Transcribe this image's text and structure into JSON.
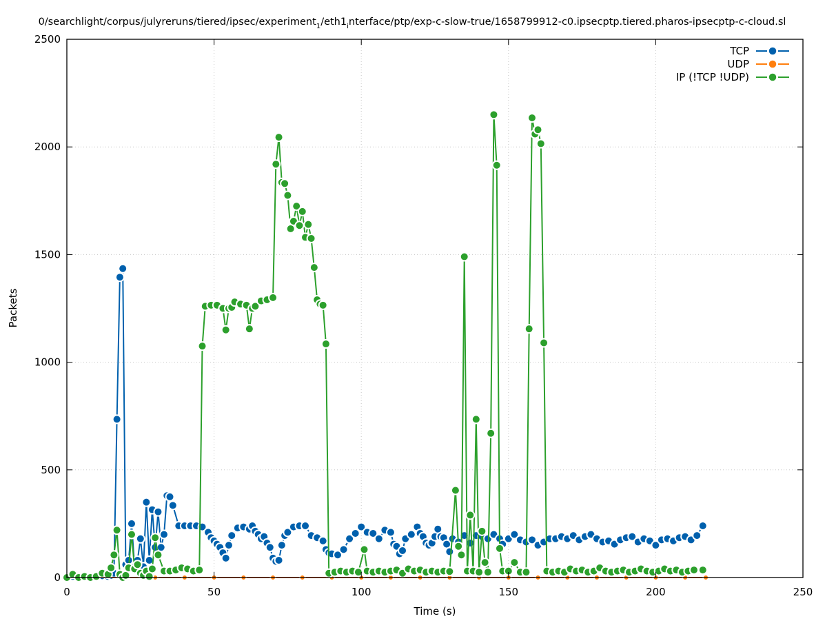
{
  "chart_data": {
    "type": "line",
    "title": {
      "main": "0/searchlight/corpus/julyreruns/tiered/ipsec/experiment",
      "sub1": "1",
      "mid": "/eth1",
      "sub2": "i",
      "rest": "nterface/ptp/exp-c-slow-true/1658799912-c0.ipsecptp.tiered.pharos-ipsecptp-c-cloud.sl"
    },
    "xlabel": "Time (s)",
    "ylabel": "Packets",
    "xlim": [
      0,
      250
    ],
    "ylim": [
      0,
      2500
    ],
    "xticks": [
      0,
      50,
      100,
      150,
      200,
      250
    ],
    "yticks": [
      0,
      500,
      1000,
      1500,
      2000,
      2500
    ],
    "grid": true,
    "legend_position": "top-right",
    "series": [
      {
        "name": "TCP",
        "color": "#0060ad",
        "points": [
          [
            0,
            0
          ],
          [
            2,
            5
          ],
          [
            4,
            0
          ],
          [
            6,
            0
          ],
          [
            8,
            0
          ],
          [
            10,
            3
          ],
          [
            12,
            8
          ],
          [
            14,
            5
          ],
          [
            15,
            10
          ],
          [
            16,
            20
          ],
          [
            17,
            735
          ],
          [
            18,
            1395
          ],
          [
            19,
            1435
          ],
          [
            20,
            60
          ],
          [
            21,
            80
          ],
          [
            22,
            250
          ],
          [
            23,
            50
          ],
          [
            24,
            80
          ],
          [
            25,
            180
          ],
          [
            26,
            50
          ],
          [
            27,
            350
          ],
          [
            28,
            80
          ],
          [
            29,
            315
          ],
          [
            30,
            140
          ],
          [
            31,
            305
          ],
          [
            32,
            140
          ],
          [
            33,
            200
          ],
          [
            34,
            380
          ],
          [
            35,
            375
          ],
          [
            36,
            335
          ],
          [
            38,
            240
          ],
          [
            40,
            240
          ],
          [
            42,
            240
          ],
          [
            44,
            240
          ],
          [
            46,
            235
          ],
          [
            48,
            210
          ],
          [
            49,
            185
          ],
          [
            50,
            170
          ],
          [
            51,
            155
          ],
          [
            52,
            140
          ],
          [
            53,
            115
          ],
          [
            54,
            90
          ],
          [
            55,
            150
          ],
          [
            56,
            195
          ],
          [
            58,
            230
          ],
          [
            60,
            235
          ],
          [
            62,
            225
          ],
          [
            63,
            240
          ],
          [
            64,
            215
          ],
          [
            65,
            200
          ],
          [
            66,
            180
          ],
          [
            67,
            190
          ],
          [
            68,
            160
          ],
          [
            69,
            140
          ],
          [
            70,
            90
          ],
          [
            71,
            75
          ],
          [
            72,
            80
          ],
          [
            73,
            150
          ],
          [
            74,
            195
          ],
          [
            75,
            210
          ],
          [
            77,
            235
          ],
          [
            79,
            240
          ],
          [
            81,
            240
          ],
          [
            83,
            195
          ],
          [
            85,
            185
          ],
          [
            87,
            170
          ],
          [
            88,
            130
          ],
          [
            89,
            115
          ],
          [
            90,
            110
          ],
          [
            92,
            105
          ],
          [
            94,
            130
          ],
          [
            96,
            180
          ],
          [
            98,
            205
          ],
          [
            100,
            235
          ],
          [
            102,
            210
          ],
          [
            104,
            205
          ],
          [
            106,
            180
          ],
          [
            108,
            220
          ],
          [
            110,
            210
          ],
          [
            111,
            155
          ],
          [
            112,
            145
          ],
          [
            113,
            110
          ],
          [
            114,
            125
          ],
          [
            115,
            180
          ],
          [
            117,
            200
          ],
          [
            119,
            235
          ],
          [
            120,
            205
          ],
          [
            121,
            190
          ],
          [
            122,
            160
          ],
          [
            123,
            150
          ],
          [
            124,
            160
          ],
          [
            125,
            190
          ],
          [
            126,
            225
          ],
          [
            127,
            190
          ],
          [
            128,
            185
          ],
          [
            129,
            155
          ],
          [
            130,
            120
          ],
          [
            131,
            180
          ],
          [
            133,
            165
          ],
          [
            135,
            195
          ],
          [
            137,
            160
          ],
          [
            139,
            195
          ],
          [
            141,
            190
          ],
          [
            143,
            180
          ],
          [
            145,
            200
          ],
          [
            147,
            180
          ],
          [
            148,
            155
          ],
          [
            150,
            180
          ],
          [
            152,
            200
          ],
          [
            154,
            175
          ],
          [
            156,
            165
          ],
          [
            158,
            175
          ],
          [
            160,
            150
          ],
          [
            162,
            165
          ],
          [
            164,
            180
          ],
          [
            166,
            180
          ],
          [
            168,
            190
          ],
          [
            170,
            180
          ],
          [
            172,
            195
          ],
          [
            174,
            175
          ],
          [
            176,
            190
          ],
          [
            178,
            200
          ],
          [
            180,
            180
          ],
          [
            182,
            165
          ],
          [
            184,
            170
          ],
          [
            186,
            155
          ],
          [
            188,
            175
          ],
          [
            190,
            185
          ],
          [
            192,
            190
          ],
          [
            194,
            165
          ],
          [
            196,
            180
          ],
          [
            198,
            170
          ],
          [
            200,
            150
          ],
          [
            202,
            175
          ],
          [
            204,
            180
          ],
          [
            206,
            170
          ],
          [
            208,
            185
          ],
          [
            210,
            190
          ],
          [
            212,
            175
          ],
          [
            214,
            195
          ],
          [
            216,
            240
          ]
        ]
      },
      {
        "name": "UDP",
        "color": "#ff7f0e",
        "points": [
          [
            0,
            0
          ],
          [
            10,
            0
          ],
          [
            20,
            0
          ],
          [
            30,
            0
          ],
          [
            40,
            0
          ],
          [
            50,
            0
          ],
          [
            60,
            0
          ],
          [
            70,
            0
          ],
          [
            80,
            0
          ],
          [
            90,
            0
          ],
          [
            100,
            0
          ],
          [
            110,
            0
          ],
          [
            120,
            0
          ],
          [
            130,
            0
          ],
          [
            140,
            0
          ],
          [
            150,
            0
          ],
          [
            160,
            0
          ],
          [
            170,
            0
          ],
          [
            180,
            0
          ],
          [
            190,
            0
          ],
          [
            200,
            0
          ],
          [
            210,
            0
          ],
          [
            217,
            0
          ]
        ]
      },
      {
        "name": "IP (!TCP  !UDP)",
        "color": "#2ca02c",
        "points": [
          [
            0,
            0
          ],
          [
            2,
            15
          ],
          [
            4,
            0
          ],
          [
            6,
            5
          ],
          [
            8,
            0
          ],
          [
            10,
            5
          ],
          [
            12,
            20
          ],
          [
            14,
            15
          ],
          [
            15,
            45
          ],
          [
            16,
            105
          ],
          [
            17,
            220
          ],
          [
            18,
            15
          ],
          [
            19,
            0
          ],
          [
            20,
            10
          ],
          [
            21,
            45
          ],
          [
            22,
            200
          ],
          [
            23,
            40
          ],
          [
            24,
            60
          ],
          [
            25,
            20
          ],
          [
            26,
            10
          ],
          [
            27,
            30
          ],
          [
            28,
            5
          ],
          [
            29,
            40
          ],
          [
            30,
            185
          ],
          [
            31,
            105
          ],
          [
            33,
            30
          ],
          [
            35,
            30
          ],
          [
            37,
            35
          ],
          [
            39,
            45
          ],
          [
            41,
            40
          ],
          [
            43,
            30
          ],
          [
            45,
            35
          ],
          [
            46,
            1075
          ],
          [
            47,
            1260
          ],
          [
            49,
            1265
          ],
          [
            51,
            1265
          ],
          [
            53,
            1250
          ],
          [
            54,
            1150
          ],
          [
            55,
            1250
          ],
          [
            56,
            1255
          ],
          [
            57,
            1280
          ],
          [
            59,
            1270
          ],
          [
            61,
            1265
          ],
          [
            62,
            1155
          ],
          [
            63,
            1250
          ],
          [
            64,
            1260
          ],
          [
            66,
            1285
          ],
          [
            68,
            1290
          ],
          [
            70,
            1300
          ],
          [
            71,
            1920
          ],
          [
            72,
            2045
          ],
          [
            73,
            1835
          ],
          [
            74,
            1830
          ],
          [
            75,
            1775
          ],
          [
            76,
            1620
          ],
          [
            77,
            1655
          ],
          [
            78,
            1725
          ],
          [
            79,
            1635
          ],
          [
            80,
            1700
          ],
          [
            81,
            1580
          ],
          [
            82,
            1640
          ],
          [
            83,
            1575
          ],
          [
            84,
            1440
          ],
          [
            85,
            1290
          ],
          [
            86,
            1270
          ],
          [
            87,
            1265
          ],
          [
            88,
            1085
          ],
          [
            89,
            20
          ],
          [
            91,
            25
          ],
          [
            93,
            30
          ],
          [
            95,
            25
          ],
          [
            97,
            30
          ],
          [
            99,
            25
          ],
          [
            101,
            130
          ],
          [
            102,
            30
          ],
          [
            104,
            25
          ],
          [
            106,
            30
          ],
          [
            108,
            25
          ],
          [
            110,
            30
          ],
          [
            112,
            35
          ],
          [
            114,
            20
          ],
          [
            116,
            40
          ],
          [
            118,
            30
          ],
          [
            120,
            35
          ],
          [
            122,
            25
          ],
          [
            124,
            30
          ],
          [
            126,
            25
          ],
          [
            128,
            30
          ],
          [
            130,
            28
          ],
          [
            132,
            405
          ],
          [
            133,
            145
          ],
          [
            134,
            105
          ],
          [
            135,
            1490
          ],
          [
            136,
            30
          ],
          [
            137,
            290
          ],
          [
            138,
            30
          ],
          [
            139,
            735
          ],
          [
            140,
            25
          ],
          [
            141,
            215
          ],
          [
            142,
            70
          ],
          [
            143,
            25
          ],
          [
            144,
            670
          ],
          [
            145,
            2150
          ],
          [
            146,
            1915
          ],
          [
            147,
            135
          ],
          [
            148,
            30
          ],
          [
            150,
            30
          ],
          [
            152,
            70
          ],
          [
            154,
            25
          ],
          [
            156,
            25
          ],
          [
            157,
            1155
          ],
          [
            158,
            2135
          ],
          [
            159,
            2060
          ],
          [
            160,
            2080
          ],
          [
            161,
            2015
          ],
          [
            162,
            1090
          ],
          [
            163,
            30
          ],
          [
            165,
            25
          ],
          [
            167,
            30
          ],
          [
            169,
            25
          ],
          [
            171,
            40
          ],
          [
            173,
            30
          ],
          [
            175,
            35
          ],
          [
            177,
            25
          ],
          [
            179,
            30
          ],
          [
            181,
            45
          ],
          [
            183,
            30
          ],
          [
            185,
            25
          ],
          [
            187,
            30
          ],
          [
            189,
            35
          ],
          [
            191,
            25
          ],
          [
            193,
            30
          ],
          [
            195,
            40
          ],
          [
            197,
            30
          ],
          [
            199,
            25
          ],
          [
            201,
            30
          ],
          [
            203,
            40
          ],
          [
            205,
            30
          ],
          [
            207,
            35
          ],
          [
            209,
            25
          ],
          [
            211,
            30
          ],
          [
            213,
            35
          ],
          [
            216,
            35
          ]
        ]
      }
    ]
  }
}
